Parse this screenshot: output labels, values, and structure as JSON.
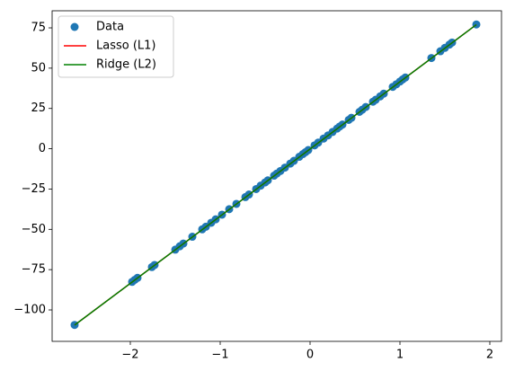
{
  "chart_data": {
    "type": "scatter",
    "xlim": [
      -2.87,
      2.13
    ],
    "ylim": [
      -119.5,
      85.6
    ],
    "xticks": [
      {
        "value": -2,
        "label": "−2"
      },
      {
        "value": -1,
        "label": "−1"
      },
      0,
      1,
      2
    ],
    "yticks": [
      {
        "value": -100,
        "label": "−100"
      },
      {
        "value": -75,
        "label": "−75"
      },
      {
        "value": -50,
        "label": "−50"
      },
      {
        "value": -25,
        "label": "−25"
      },
      0,
      25,
      50,
      75
    ],
    "legend": "upper left",
    "series": [
      {
        "name": "Data",
        "type": "scatter",
        "color": "#1f77b4",
        "x": [
          -2.62,
          -1.98,
          -1.95,
          -1.92,
          -1.76,
          -1.73,
          -1.5,
          -1.45,
          -1.41,
          -1.31,
          -1.2,
          -1.16,
          -1.1,
          -1.05,
          -0.98,
          -0.9,
          -0.82,
          -0.72,
          -0.68,
          -0.6,
          -0.55,
          -0.5,
          -0.47,
          -0.4,
          -0.37,
          -0.33,
          -0.28,
          -0.22,
          -0.18,
          -0.12,
          -0.08,
          -0.05,
          -0.02,
          0.05,
          0.09,
          0.15,
          0.2,
          0.25,
          0.3,
          0.33,
          0.36,
          0.43,
          0.46,
          0.55,
          0.58,
          0.62,
          0.7,
          0.73,
          0.78,
          0.82,
          0.92,
          0.96,
          1.0,
          1.03,
          1.06,
          1.35,
          1.45,
          1.5,
          1.55,
          1.58,
          1.85
        ],
        "values": [
          -109.3,
          -82.6,
          -81.3,
          -80.1,
          -73.4,
          -72.1,
          -62.6,
          -60.5,
          -58.8,
          -54.6,
          -50.0,
          -48.4,
          -45.9,
          -43.8,
          -40.9,
          -37.5,
          -34.2,
          -30.0,
          -28.4,
          -25.0,
          -22.9,
          -20.9,
          -19.6,
          -16.7,
          -15.4,
          -13.8,
          -11.7,
          -9.2,
          -7.5,
          -5.0,
          -3.3,
          -2.1,
          -0.8,
          2.1,
          3.8,
          6.3,
          8.3,
          10.4,
          12.5,
          13.8,
          15.0,
          17.9,
          19.2,
          22.9,
          24.2,
          25.9,
          29.2,
          30.4,
          32.5,
          34.2,
          38.4,
          40.0,
          41.7,
          43.0,
          44.2,
          56.3,
          60.5,
          62.6,
          64.6,
          65.9,
          77.1
        ]
      },
      {
        "name": "Lasso (L1)",
        "type": "line",
        "color": "#ff0000",
        "x": [
          -2.62,
          1.85
        ],
        "values": [
          -109.4,
          77.0
        ]
      },
      {
        "name": "Ridge (L2)",
        "type": "line",
        "color": "#008000",
        "x": [
          -2.62,
          1.85
        ],
        "values": [
          -109.4,
          77.0
        ]
      }
    ]
  }
}
